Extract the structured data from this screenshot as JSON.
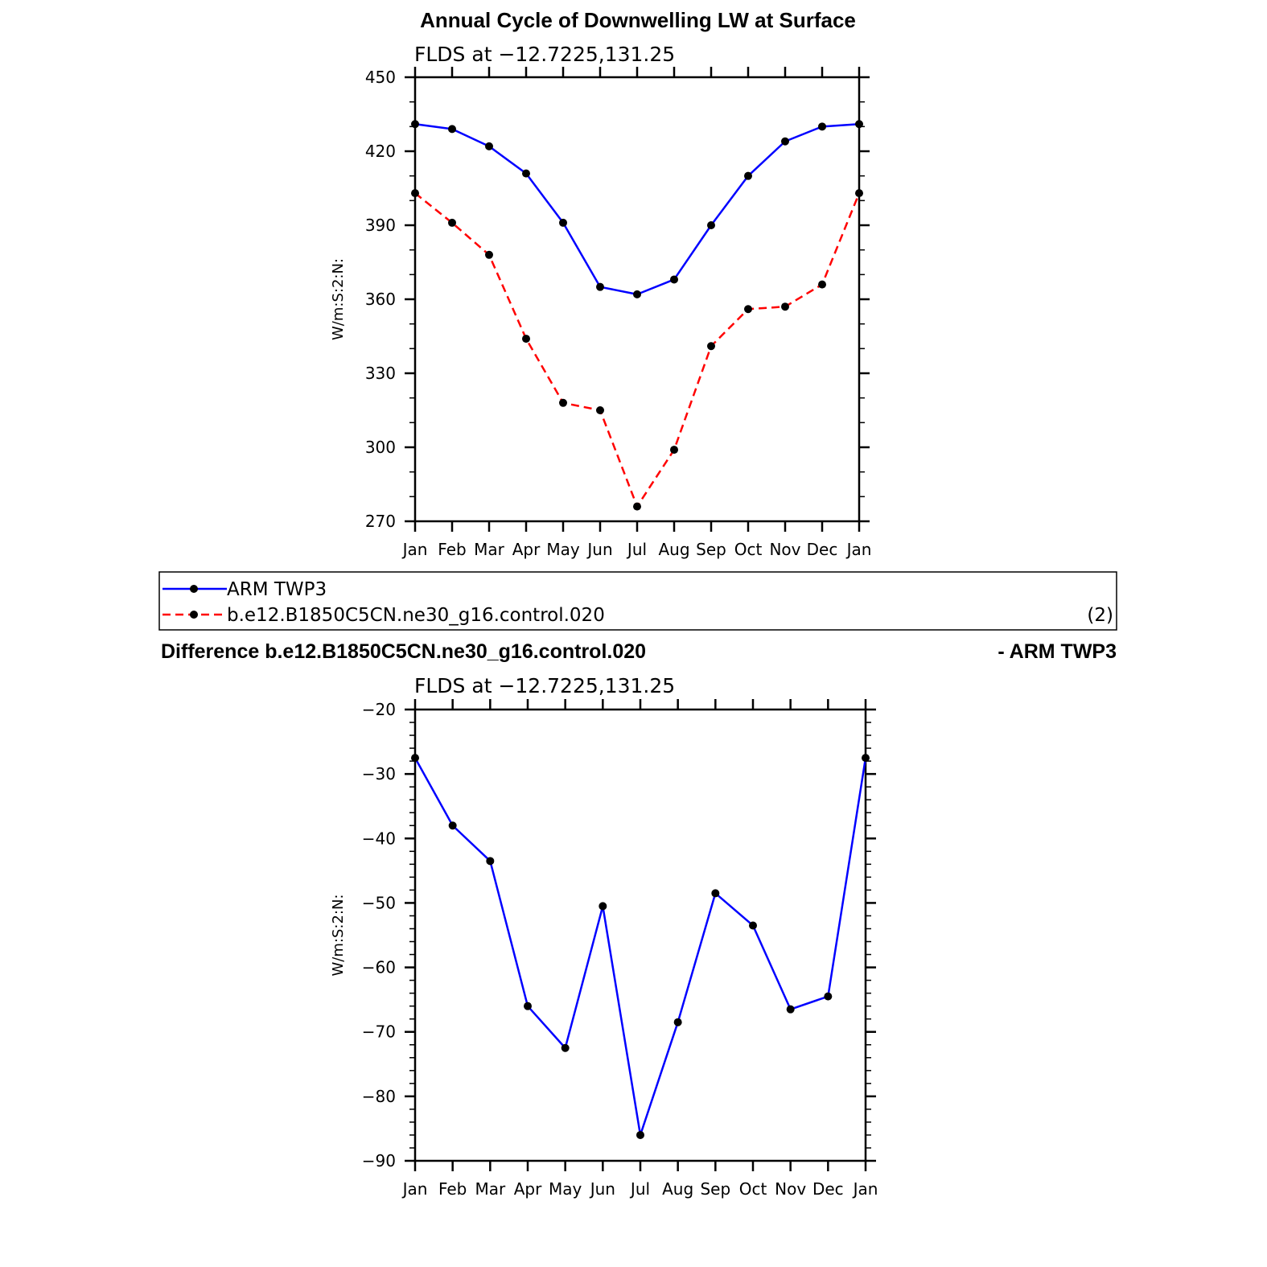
{
  "chart_data": [
    {
      "type": "line",
      "title": "Annual Cycle of Downwelling LW at Surface",
      "subtitle": "FLDS at −12.7225,131.25",
      "ylabel": "W/m:S:2:N:",
      "xlabel": "",
      "categories": [
        "Jan",
        "Feb",
        "Mar",
        "Apr",
        "May",
        "Jun",
        "Jul",
        "Aug",
        "Sep",
        "Oct",
        "Nov",
        "Dec",
        "Jan"
      ],
      "ylim": [
        270,
        450
      ],
      "yticks": [
        270,
        300,
        330,
        360,
        390,
        420,
        450
      ],
      "ytick_labels": [
        "270",
        "300",
        "330",
        "360",
        "390",
        "420",
        "450"
      ],
      "series": [
        {
          "name": "ARM TWP3",
          "color": "#0000ff",
          "dash": "solid",
          "values": [
            431,
            429,
            422,
            411,
            391,
            365,
            362,
            368,
            390,
            410,
            424,
            430,
            431
          ]
        },
        {
          "name": "b.e12.B1850C5CN.ne30_g16.control.020",
          "color": "#ff0000",
          "dash": "dashed",
          "values": [
            403,
            391,
            378,
            344,
            318,
            315,
            276,
            299,
            341,
            356,
            357,
            366,
            403
          ]
        }
      ],
      "legend": {
        "placement": "bottom",
        "entries": [
          "ARM TWP3",
          "b.e12.B1850C5CN.ne30_g16.control.020"
        ],
        "panel_number": "(2)"
      }
    },
    {
      "type": "line",
      "title_left": "Difference b.e12.B1850C5CN.ne30_g16.control.020",
      "title_right": "- ARM TWP3",
      "subtitle": "FLDS at −12.7225,131.25",
      "ylabel": "W/m:S:2:N:",
      "xlabel": "",
      "categories": [
        "Jan",
        "Feb",
        "Mar",
        "Apr",
        "May",
        "Jun",
        "Jul",
        "Aug",
        "Sep",
        "Oct",
        "Nov",
        "Dec",
        "Jan"
      ],
      "ylim": [
        -90,
        -20
      ],
      "yticks": [
        -90,
        -80,
        -70,
        -60,
        -50,
        -40,
        -30,
        -20
      ],
      "ytick_labels": [
        "−90",
        "−80",
        "−70",
        "−60",
        "−50",
        "−40",
        "−30",
        "−20"
      ],
      "series": [
        {
          "name": "",
          "color": "#0000ff",
          "dash": "solid",
          "values": [
            -27.5,
            -38,
            -43.5,
            -66,
            -72.5,
            -50.5,
            -86,
            -68.5,
            -48.5,
            -53.5,
            -66.5,
            -64.5,
            -27.5
          ]
        }
      ]
    }
  ]
}
